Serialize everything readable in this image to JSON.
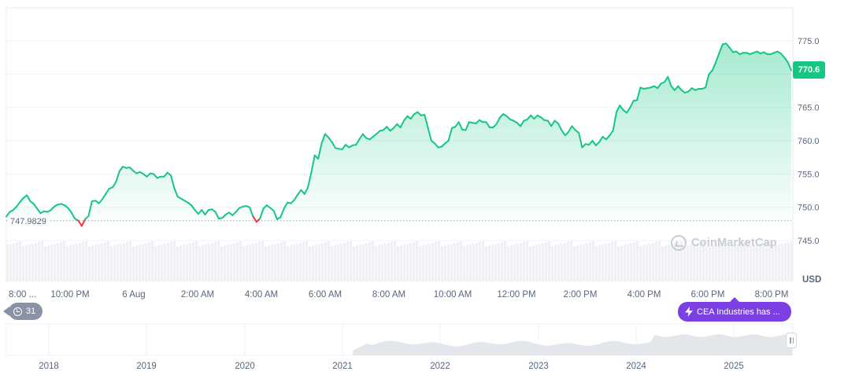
{
  "chart_data": {
    "type": "area",
    "currency": "USD",
    "y_ticks": [
      "775.0",
      "770.0",
      "765.0",
      "760.0",
      "755.0",
      "750.0",
      "745.0"
    ],
    "ylim": [
      745.0,
      775.0
    ],
    "x_ticks": [
      "8:00 ...",
      "10:00 PM",
      "6 Aug",
      "2:00 AM",
      "4:00 AM",
      "6:00 AM",
      "8:00 AM",
      "10:00 AM",
      "12:00 PM",
      "2:00 PM",
      "4:00 PM",
      "6:00 PM",
      "8:00 PM"
    ],
    "reference_price": "747.9829",
    "current_price": "770.6",
    "series": [
      {
        "values": [
          748.6,
          749.3,
          749.6,
          750.1,
          750.8,
          751.4,
          751.8,
          750.9,
          750.5,
          749.8,
          749.1,
          749.4,
          749.3,
          749.6,
          750.1,
          750.4,
          750.5,
          750.3,
          749.9,
          749.2,
          748.3,
          748.0,
          747.2,
          748.2,
          748.7,
          750.9,
          751.0,
          750.6,
          751.2,
          752.0,
          752.8,
          753.0,
          753.8,
          755.4,
          756.1,
          755.9,
          756.0,
          755.5,
          755.1,
          755.3,
          755.0,
          754.6,
          755.1,
          755.0,
          754.4,
          754.6,
          754.6,
          755.2,
          754.8,
          752.9,
          751.6,
          751.3,
          751.0,
          750.7,
          750.3,
          749.6,
          749.0,
          749.6,
          748.9,
          749.6,
          749.7,
          749.3,
          748.3,
          748.4,
          748.9,
          749.2,
          748.8,
          749.3,
          749.9,
          750.1,
          750.2,
          750.0,
          748.6,
          747.8,
          748.3,
          749.8,
          750.3,
          749.9,
          749.5,
          748.2,
          748.5,
          749.8,
          750.7,
          750.6,
          751.1,
          751.9,
          752.6,
          752.0,
          753.0,
          755.3,
          757.8,
          757.3,
          759.6,
          761.0,
          760.5,
          759.8,
          758.9,
          758.8,
          758.7,
          759.4,
          759.0,
          759.3,
          759.4,
          760.2,
          761.0,
          760.4,
          760.2,
          760.6,
          761.0,
          761.5,
          761.6,
          762.1,
          761.5,
          761.9,
          762.5,
          762.0,
          763.0,
          763.7,
          763.3,
          764.0,
          764.3,
          763.8,
          763.9,
          762.0,
          760.0,
          759.6,
          759.0,
          759.1,
          759.6,
          760.0,
          761.9,
          762.1,
          762.8,
          761.7,
          761.6,
          762.8,
          762.7,
          762.6,
          763.1,
          762.8,
          762.8,
          762.0,
          762.0,
          762.5,
          763.5,
          764.0,
          763.7,
          763.2,
          763.0,
          762.7,
          762.2,
          763.0,
          763.2,
          763.8,
          763.3,
          763.8,
          763.5,
          763.1,
          763.0,
          762.2,
          763.0,
          762.6,
          761.6,
          760.8,
          761.3,
          762.2,
          761.6,
          761.2,
          759.0,
          759.5,
          759.4,
          760.0,
          759.3,
          759.8,
          760.6,
          760.2,
          760.8,
          761.5,
          764.3,
          765.3,
          764.6,
          764.2,
          765.0,
          766.0,
          766.1,
          768.0,
          767.8,
          767.9,
          768.0,
          768.2,
          767.9,
          768.6,
          768.8,
          769.6,
          768.2,
          767.6,
          768.2,
          767.6,
          767.2,
          767.4,
          767.9,
          767.6,
          767.8,
          767.8,
          768.0,
          770.0,
          770.6,
          771.8,
          773.2,
          774.5,
          774.6,
          774.0,
          773.3,
          773.4,
          773.0,
          773.2,
          773.2,
          773.0,
          773.2,
          773.4,
          773.1,
          773.3,
          773.0,
          773.0,
          773.2,
          773.4,
          773.1,
          772.5,
          771.8,
          770.6
        ]
      }
    ],
    "overview": {
      "x_ticks": [
        "2018",
        "2019",
        "2020",
        "2021",
        "2022",
        "2023",
        "2024",
        "2025"
      ]
    }
  },
  "ui": {
    "unit_label": "USD",
    "watermark": "CoinMarketCap",
    "history_count": "31",
    "news_text": "CEA Industries has ...",
    "accent_up": "#16c784",
    "accent_down": "#ea3943",
    "news_color": "#7b3fe4"
  }
}
